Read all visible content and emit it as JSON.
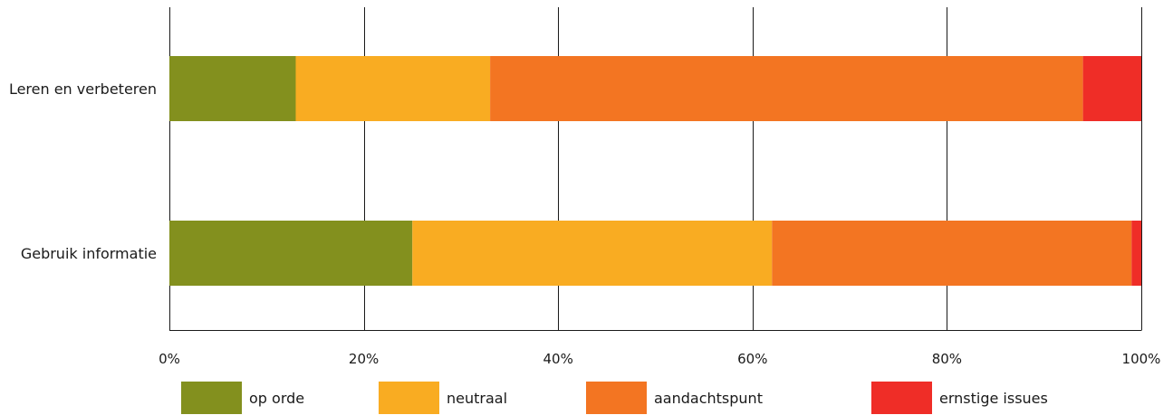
{
  "chart_data": {
    "type": "bar",
    "orientation": "horizontal",
    "stacked": true,
    "categories": [
      "Leren en verbeteren",
      "Gebruik informatie"
    ],
    "series": [
      {
        "name": "op orde",
        "color": "#83901e",
        "values": [
          13,
          25
        ]
      },
      {
        "name": "neutraal",
        "color": "#f9ac22",
        "values": [
          20,
          37
        ]
      },
      {
        "name": "aandachtspunt",
        "color": "#f37522",
        "values": [
          61,
          37
        ]
      },
      {
        "name": "ernstige issues",
        "color": "#ef2d27",
        "values": [
          6,
          1
        ]
      }
    ],
    "xticks": [
      "0%",
      "20%",
      "40%",
      "60%",
      "80%",
      "100%"
    ],
    "xlim": [
      0,
      100
    ],
    "grid": true,
    "legend_position": "bottom"
  }
}
